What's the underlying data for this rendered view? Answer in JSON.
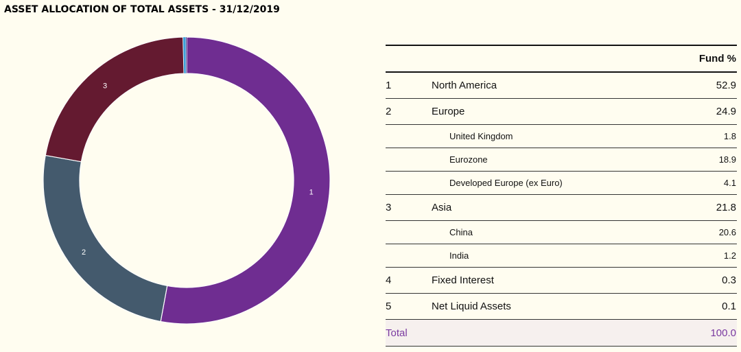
{
  "title": "ASSET ALLOCATION OF TOTAL ASSETS - 31/12/2019",
  "chart_data": {
    "type": "pie",
    "variant": "donut",
    "title": "ASSET ALLOCATION OF TOTAL ASSETS - 31/12/2019",
    "categories": [
      "North America",
      "Europe",
      "Asia",
      "Fixed Interest",
      "Net Liquid Assets"
    ],
    "slice_labels": [
      "1",
      "2",
      "3",
      "",
      ""
    ],
    "values": [
      52.9,
      24.9,
      21.8,
      0.3,
      0.1
    ],
    "colors": [
      "#6f2d91",
      "#445a6d",
      "#641a30",
      "#3aa0d8",
      "#1a1a7a"
    ]
  },
  "table": {
    "header": {
      "col1": "",
      "col2": "",
      "col3": "Fund %"
    },
    "rows": [
      {
        "num": "1",
        "label": "North America",
        "value": "52.9",
        "level": "major"
      },
      {
        "num": "2",
        "label": "Europe",
        "value": "24.9",
        "level": "major"
      },
      {
        "num": "",
        "label": "United Kingdom",
        "value": "1.8",
        "level": "minor"
      },
      {
        "num": "",
        "label": "Eurozone",
        "value": "18.9",
        "level": "minor"
      },
      {
        "num": "",
        "label": "Developed Europe (ex Euro)",
        "value": "4.1",
        "level": "minor"
      },
      {
        "num": "3",
        "label": "Asia",
        "value": "21.8",
        "level": "major"
      },
      {
        "num": "",
        "label": "China",
        "value": "20.6",
        "level": "minor"
      },
      {
        "num": "",
        "label": "India",
        "value": "1.2",
        "level": "minor"
      },
      {
        "num": "4",
        "label": "Fixed Interest",
        "value": "0.3",
        "level": "major"
      },
      {
        "num": "5",
        "label": "Net Liquid Assets",
        "value": "0.1",
        "level": "major"
      }
    ],
    "total": {
      "label": "Total",
      "value": "100.0"
    }
  }
}
